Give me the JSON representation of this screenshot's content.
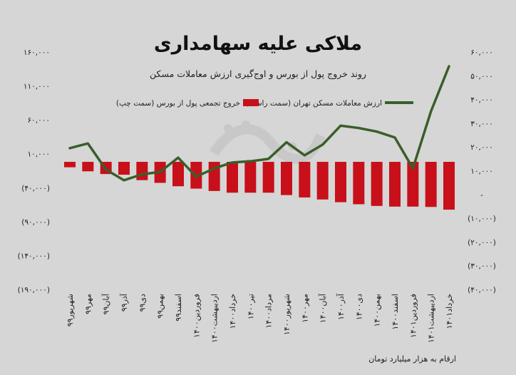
{
  "chart_data": {
    "type": "bar+line",
    "title": "ملاکی علیه سهامداری",
    "subtitle": "روند خروج پول از بورس و اوج‌گیری ارزش معاملات مسکن",
    "note": "ارقام به هزار میلیارد تومان",
    "categories": [
      "شهریور۹۹",
      "مهر۹۹",
      "آبان۹۹",
      "آذر۹۹",
      "دی۹۹",
      "بهمن۹۹",
      "اسفند۹۹",
      "فروردین۱۴۰۰",
      "اردیبهشت۱۴۰۰",
      "خرداد۱۴۰۰",
      "تیر۱۴۰۰",
      "مرداد۱۴۰۰",
      "شهریور۱۴۰۰",
      "مهر۱۴۰۰",
      "آبان۱۴۰۰",
      "آذر۱۴۰۰",
      "دی۱۴۰۰",
      "بهمن۱۴۰۰",
      "اسفند۱۴۰۰",
      "فروردین۱۴۰۱",
      "اردیبهشت۱۴۰۱",
      "خرداد۱۴۰۱"
    ],
    "left_axis": {
      "ylim": [
        -190000,
        160000
      ],
      "ticks": [
        160000,
        110000,
        60000,
        10000,
        -40000,
        -90000,
        -140000,
        -190000
      ],
      "tick_labels": [
        "۱۶۰,۰۰۰",
        "۱۱۰,۰۰۰",
        "۶۰,۰۰۰",
        "۱۰,۰۰۰",
        "(۴۰,۰۰۰)",
        "(۹۰,۰۰۰)",
        "(۱۴۰,۰۰۰)",
        "(۱۹۰,۰۰۰)"
      ]
    },
    "right_axis": {
      "ylim": [
        -40000,
        60000
      ],
      "ticks": [
        60000,
        50000,
        40000,
        30000,
        20000,
        10000,
        0,
        -10000,
        -20000,
        -30000,
        -40000
      ],
      "tick_labels": [
        "۶۰,۰۰۰",
        "۵۰,۰۰۰",
        "۴۰,۰۰۰",
        "۳۰,۰۰۰",
        "۲۰,۰۰۰",
        "۱۰,۰۰۰",
        "-",
        "(۱۰,۰۰۰)",
        "(۲۰,۰۰۰)",
        "(۳۰,۰۰۰)",
        "(۴۰,۰۰۰)"
      ]
    },
    "series": [
      {
        "name": "خروج تجمعی پول از بورس (سمت چپ)",
        "type": "bar",
        "axis": "left",
        "color": "#c8101a",
        "values": [
          -8000,
          -14000,
          -18000,
          -19000,
          -27000,
          -31000,
          -36000,
          -39500,
          -43000,
          -45500,
          -45500,
          -45500,
          -49000,
          -52500,
          -55500,
          -59500,
          -62500,
          -65000,
          -66000,
          -66000,
          -66500,
          -70500
        ]
      },
      {
        "name": "ارزش معاملات مسکن تهران (سمت راست)",
        "type": "line",
        "axis": "right",
        "color": "#3a5e2a",
        "values": [
          19500,
          21500,
          10500,
          6000,
          8500,
          9500,
          15500,
          7500,
          11000,
          13500,
          14000,
          15000,
          22000,
          16500,
          21000,
          29000,
          28000,
          26500,
          24000,
          11000,
          35000,
          54000
        ]
      }
    ]
  }
}
